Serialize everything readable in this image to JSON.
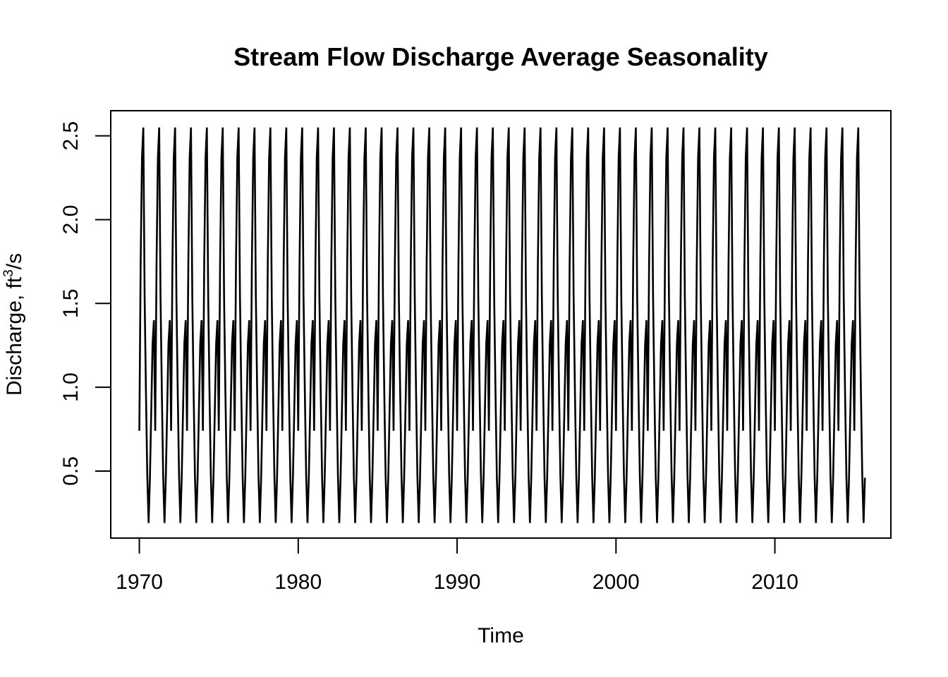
{
  "chart_data": {
    "type": "line",
    "title": "Stream Flow Discharge Average Seasonality",
    "xlabel": "Time",
    "ylabel": {
      "prefix": "Discharge, ft",
      "superscript": "3",
      "suffix": "/s"
    },
    "xlim": [
      1968.2,
      2017.3
    ],
    "ylim": [
      0.1,
      2.65
    ],
    "x_ticks": [
      1970,
      1980,
      1990,
      2000,
      2010
    ],
    "y_ticks": [
      0.5,
      1.0,
      1.5,
      2.0,
      2.5
    ],
    "x_tick_labels": [
      "1970",
      "1980",
      "1990",
      "2000",
      "2010"
    ],
    "y_tick_labels": [
      "0.5",
      "1.0",
      "1.5",
      "2.0",
      "2.5"
    ],
    "grid": false,
    "series": [
      {
        "color": "#000000",
        "start_year": 1970,
        "end_year": 2015,
        "end_month": 9,
        "seasonal_profile": [
          0.74,
          1.74,
          2.37,
          2.55,
          1.54,
          0.97,
          0.47,
          0.19,
          0.46,
          0.86,
          1.26,
          1.4
        ]
      }
    ]
  }
}
